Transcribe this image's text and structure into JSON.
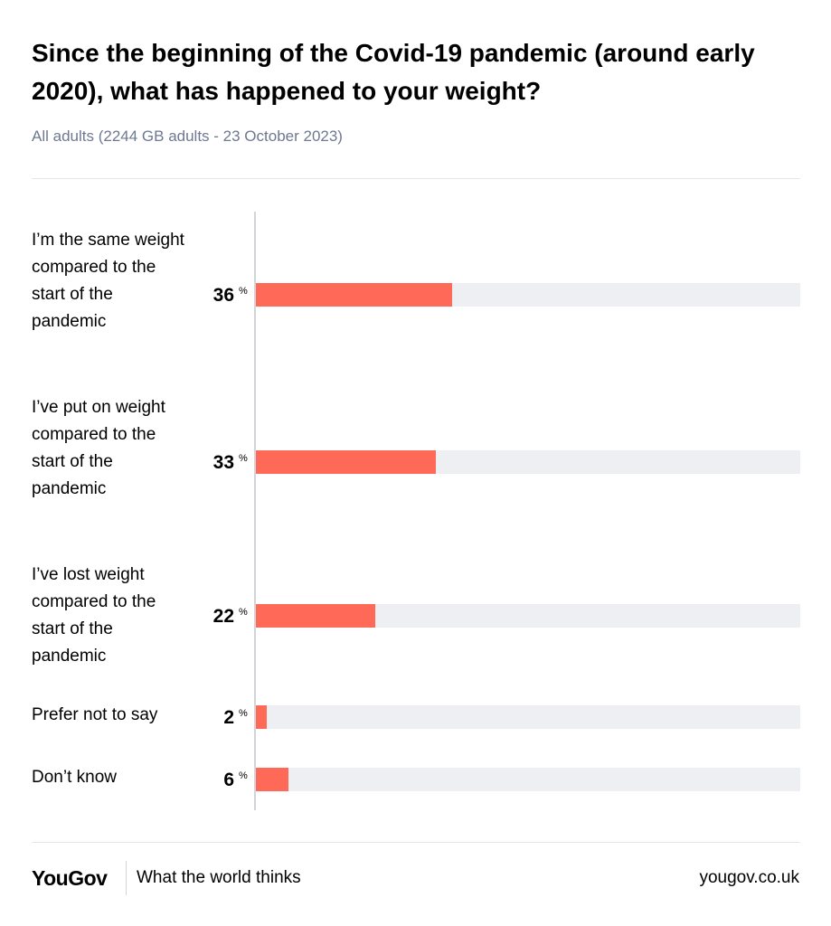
{
  "colors": {
    "bar": "#ff6a58",
    "track": "#eeeff3",
    "subtitle": "#6e7891"
  },
  "header": {
    "title": "Since the beginning of the Covid-19 pandemic (around early 2020), what has happened to your weight?",
    "subtitle": "All adults (2244 GB adults - 23 October 2023)"
  },
  "chart_data": {
    "type": "bar",
    "orientation": "horizontal",
    "title": "Since the beginning of the Covid-19 pandemic (around early 2020), what has happened to your weight?",
    "subtitle": "All adults (2244 GB adults - 23 October 2023)",
    "xlim": [
      0,
      100
    ],
    "unit": "%",
    "grid": false,
    "categories": [
      "I’m the same weight compared to the start of the pandemic",
      "I’ve put on weight compared to the start of the pandemic",
      "I’ve lost weight compared to the start of the pandemic",
      "Prefer not to say",
      "Don’t know"
    ],
    "values": [
      36,
      33,
      22,
      2,
      6
    ],
    "value_labels": [
      "36",
      "33",
      "22",
      "2",
      "6"
    ]
  },
  "footer": {
    "logo": "YouGov",
    "tagline": "What the world thinks",
    "url": "yougov.co.uk"
  }
}
